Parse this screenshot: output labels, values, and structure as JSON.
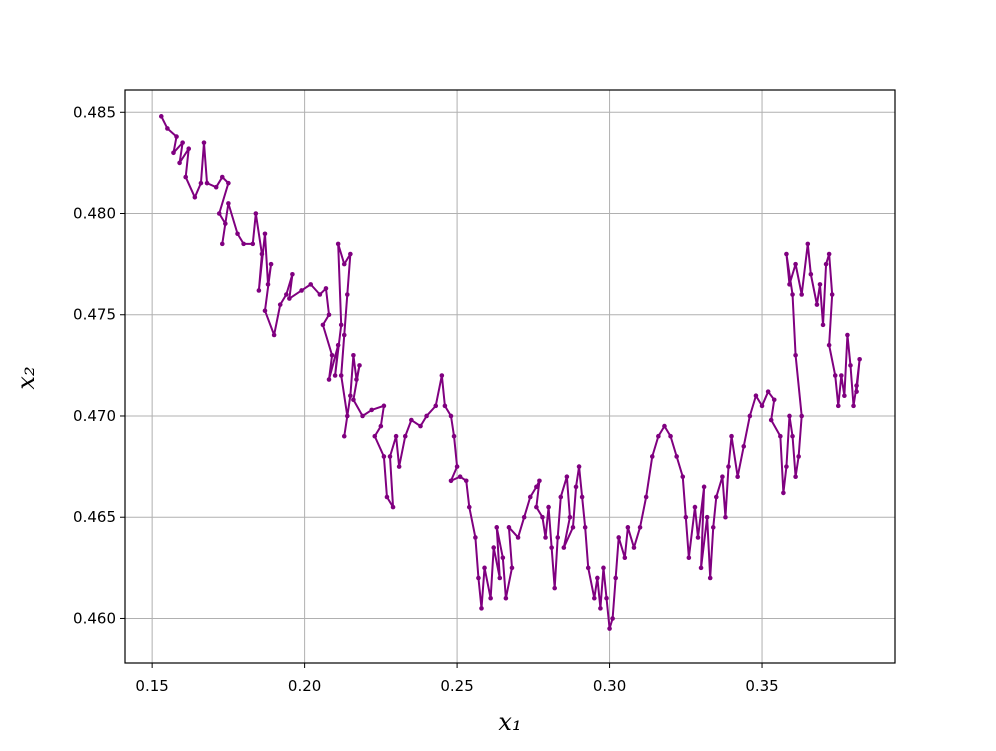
{
  "chart_data": {
    "type": "line",
    "xlabel": "x₁",
    "ylabel": "x₂",
    "x": [
      0.153,
      0.155,
      0.158,
      0.157,
      0.16,
      0.159,
      0.162,
      0.161,
      0.164,
      0.166,
      0.167,
      0.168,
      0.171,
      0.173,
      0.175,
      0.172,
      0.174,
      0.173,
      0.175,
      0.178,
      0.18,
      0.183,
      0.184,
      0.186,
      0.185,
      0.187,
      0.188,
      0.189,
      0.187,
      0.19,
      0.192,
      0.194,
      0.196,
      0.195,
      0.199,
      0.202,
      0.205,
      0.207,
      0.208,
      0.206,
      0.209,
      0.208,
      0.211,
      0.21,
      0.212,
      0.211,
      0.213,
      0.215,
      0.214,
      0.213,
      0.212,
      0.214,
      0.213,
      0.215,
      0.216,
      0.217,
      0.218,
      0.216,
      0.219,
      0.222,
      0.226,
      0.225,
      0.223,
      0.226,
      0.227,
      0.229,
      0.228,
      0.23,
      0.231,
      0.233,
      0.235,
      0.238,
      0.24,
      0.243,
      0.245,
      0.246,
      0.248,
      0.249,
      0.25,
      0.248,
      0.251,
      0.253,
      0.254,
      0.256,
      0.257,
      0.258,
      0.259,
      0.261,
      0.262,
      0.264,
      0.263,
      0.265,
      0.266,
      0.268,
      0.267,
      0.27,
      0.272,
      0.274,
      0.276,
      0.277,
      0.276,
      0.278,
      0.279,
      0.28,
      0.281,
      0.282,
      0.283,
      0.284,
      0.286,
      0.287,
      0.285,
      0.288,
      0.289,
      0.29,
      0.291,
      0.292,
      0.293,
      0.295,
      0.296,
      0.297,
      0.298,
      0.299,
      0.3,
      0.301,
      0.302,
      0.303,
      0.305,
      0.306,
      0.308,
      0.31,
      0.312,
      0.314,
      0.316,
      0.318,
      0.32,
      0.322,
      0.324,
      0.325,
      0.326,
      0.328,
      0.329,
      0.331,
      0.33,
      0.332,
      0.333,
      0.334,
      0.335,
      0.337,
      0.338,
      0.339,
      0.34,
      0.342,
      0.344,
      0.346,
      0.348,
      0.35,
      0.352,
      0.354,
      0.353,
      0.356,
      0.357,
      0.358,
      0.359,
      0.36,
      0.361,
      0.362,
      0.363,
      0.361,
      0.36,
      0.358,
      0.359,
      0.361,
      0.363,
      0.365,
      0.366,
      0.368,
      0.369,
      0.37,
      0.371,
      0.372,
      0.373,
      0.372,
      0.374,
      0.375,
      0.376,
      0.377,
      0.378,
      0.379,
      0.38,
      0.381,
      0.382,
      0.381
    ],
    "series": [
      {
        "color": "#800080",
        "values": [
          0.4848,
          0.4842,
          0.4838,
          0.483,
          0.4835,
          0.4825,
          0.4832,
          0.4818,
          0.4808,
          0.4815,
          0.4835,
          0.4815,
          0.4813,
          0.4818,
          0.4815,
          0.48,
          0.4795,
          0.4785,
          0.4805,
          0.479,
          0.4785,
          0.4785,
          0.48,
          0.478,
          0.4762,
          0.479,
          0.4765,
          0.4775,
          0.4752,
          0.474,
          0.4755,
          0.476,
          0.477,
          0.4758,
          0.4762,
          0.4765,
          0.476,
          0.4763,
          0.475,
          0.4745,
          0.473,
          0.4718,
          0.4735,
          0.472,
          0.4745,
          0.4785,
          0.4775,
          0.478,
          0.476,
          0.474,
          0.472,
          0.47,
          0.469,
          0.471,
          0.473,
          0.4718,
          0.4725,
          0.4708,
          0.47,
          0.4703,
          0.4705,
          0.4695,
          0.469,
          0.468,
          0.466,
          0.4655,
          0.468,
          0.469,
          0.4675,
          0.469,
          0.4698,
          0.4695,
          0.47,
          0.4705,
          0.472,
          0.4705,
          0.47,
          0.469,
          0.4675,
          0.4668,
          0.467,
          0.4668,
          0.4655,
          0.464,
          0.462,
          0.4605,
          0.4625,
          0.461,
          0.4635,
          0.462,
          0.4645,
          0.463,
          0.461,
          0.4625,
          0.4645,
          0.464,
          0.465,
          0.466,
          0.4665,
          0.4668,
          0.4655,
          0.465,
          0.464,
          0.4655,
          0.4635,
          0.4615,
          0.464,
          0.466,
          0.467,
          0.465,
          0.4635,
          0.4645,
          0.4665,
          0.4675,
          0.466,
          0.4645,
          0.4625,
          0.461,
          0.462,
          0.4605,
          0.4625,
          0.461,
          0.4595,
          0.46,
          0.462,
          0.464,
          0.463,
          0.4645,
          0.4635,
          0.4645,
          0.466,
          0.468,
          0.469,
          0.4695,
          0.469,
          0.468,
          0.467,
          0.465,
          0.463,
          0.4655,
          0.464,
          0.4665,
          0.4625,
          0.465,
          0.462,
          0.4645,
          0.466,
          0.467,
          0.465,
          0.4675,
          0.469,
          0.467,
          0.4685,
          0.47,
          0.471,
          0.4705,
          0.4712,
          0.4708,
          0.4698,
          0.469,
          0.4662,
          0.4675,
          0.47,
          0.469,
          0.467,
          0.468,
          0.47,
          0.473,
          0.476,
          0.478,
          0.4765,
          0.4775,
          0.476,
          0.4785,
          0.477,
          0.4755,
          0.4765,
          0.4745,
          0.4775,
          0.478,
          0.476,
          0.4735,
          0.472,
          0.4705,
          0.472,
          0.471,
          0.474,
          0.4725,
          0.4705,
          0.4715,
          0.4728,
          0.4712
        ]
      }
    ],
    "xlim": [
      0.1411,
      0.3936
    ],
    "ylim": [
      0.4578,
      0.4861
    ],
    "xticks": [
      0.15,
      {
        "value": 0.2,
        "label": "0.20"
      },
      0.25,
      {
        "value": 0.3,
        "label": "0.30"
      },
      0.35
    ],
    "yticks": [
      {
        "value": 0.46,
        "label": "0.460"
      },
      0.465,
      {
        "value": 0.47,
        "label": "0.470"
      },
      0.475,
      {
        "value": 0.48,
        "label": "0.480"
      },
      0.485
    ],
    "grid": true
  }
}
